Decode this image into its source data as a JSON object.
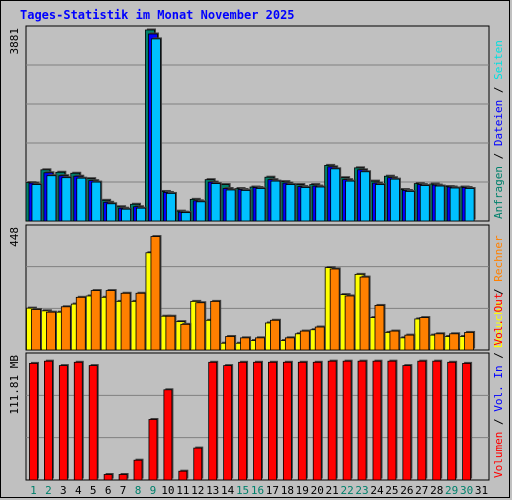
{
  "chart_data": {
    "title": "Tages-Statistik im Monat November 2025",
    "type": "bar",
    "days": [
      "1",
      "2",
      "3",
      "4",
      "5",
      "6",
      "7",
      "8",
      "9",
      "10",
      "11",
      "12",
      "13",
      "14",
      "15",
      "16",
      "17",
      "18",
      "19",
      "20",
      "21",
      "22",
      "23",
      "24",
      "25",
      "26",
      "27",
      "28",
      "29",
      "30",
      "31"
    ],
    "weekend_days": [
      1,
      2,
      8,
      9,
      15,
      16,
      22,
      23,
      29,
      30
    ],
    "colors": {
      "hits": "#00806b",
      "files": "#0000ff",
      "sites": "#00e0e0",
      "visits": "#ffff00",
      "pages": "#00c0ff",
      "kbytes_out": "#ff8000",
      "kbytes_in": "#ff0000",
      "volume_in": "#0000ff",
      "volume_out": "#ff0000",
      "weekend_label": "#00806b",
      "weekday_label": "#000000"
    },
    "panels": [
      {
        "ymax_label": "3881",
        "ylim": [
          0,
          3881
        ],
        "legend": [
          {
            "text": "Anfragen",
            "color": "#00806b"
          },
          {
            "text": "Dateien",
            "color": "#0000ff"
          },
          {
            "text": "Seiten",
            "color": "#00e0e0"
          }
        ],
        "series": [
          {
            "name": "Anfragen",
            "values": [
              780,
              1040,
              990,
              970,
              860,
              420,
              290,
              340,
              3881,
              600,
              200,
              440,
              840,
              740,
              660,
              690,
              890,
              800,
              740,
              740,
              1130,
              880,
              1080,
              810,
              910,
              640,
              760,
              750,
              700,
              690
            ]
          },
          {
            "name": "Dateien",
            "values": [
              770,
              980,
              920,
              910,
              820,
              380,
              260,
              290,
              3800,
              580,
              180,
              410,
              790,
              660,
              640,
              680,
              840,
              770,
              700,
              710,
              1100,
              840,
              1040,
              770,
              880,
              620,
              740,
              730,
              690,
              680
            ]
          },
          {
            "name": "Seiten",
            "values": [
              740,
              920,
              880,
              870,
              790,
              350,
              240,
              260,
              3700,
              560,
              170,
              390,
              760,
              630,
              620,
              660,
              810,
              740,
              680,
              690,
              1060,
              810,
              1000,
              740,
              850,
              600,
              720,
              710,
              670,
              660
            ]
          }
        ]
      },
      {
        "ymax_label": "448",
        "ylim": [
          0,
          448
        ],
        "legend": [
          {
            "text": "Besuche",
            "color": "#ffff00"
          },
          {
            "text": "Rechner",
            "color": "#ff8000"
          }
        ],
        "series": [
          {
            "name": "Besuche",
            "values": [
              155,
              145,
              140,
              170,
              200,
              195,
              180,
              180,
              360,
              125,
              105,
              180,
              110,
              25,
              25,
              35,
              100,
              35,
              60,
              75,
              305,
              205,
              280,
              120,
              65,
              45,
              115,
              55,
              50,
              50
            ]
          },
          {
            "name": "Rechner",
            "values": [
              150,
              140,
              160,
              195,
              220,
              220,
              210,
              210,
              420,
              125,
              95,
              175,
              180,
              50,
              45,
              45,
              110,
              45,
              70,
              85,
              300,
              200,
              270,
              165,
              70,
              55,
              120,
              60,
              60,
              65
            ]
          }
        ]
      },
      {
        "ymax_label": "111.81 MB",
        "ylim": [
          0,
          111.81
        ],
        "legend": [
          {
            "text": "Volumen",
            "color": "#ff0000"
          },
          {
            "text": "Vol. In",
            "color": "#0000ff"
          },
          {
            "text": "Vol. Out",
            "color": "#ff0000"
          }
        ],
        "series": [
          {
            "name": "Volumen",
            "values": [
              106,
              108,
              104,
              107,
              104,
              5,
              5,
              18,
              55,
              82,
              8,
              29,
              107,
              104,
              107,
              107,
              107,
              107,
              107,
              107,
              108,
              108,
              108,
              108,
              108,
              104,
              108,
              108,
              107,
              106
            ]
          }
        ]
      }
    ]
  }
}
